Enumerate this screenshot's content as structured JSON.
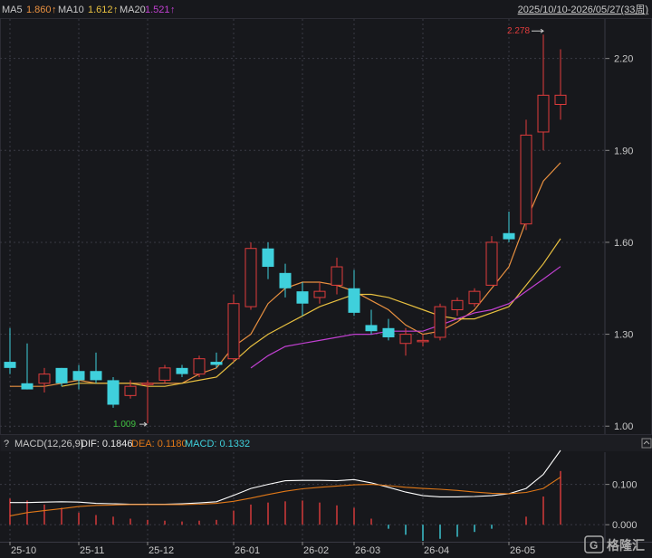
{
  "header": {
    "ma5_label": "MA5",
    "ma5_value": "1.860",
    "ma10_label": "MA10",
    "ma10_value": "1.612",
    "ma20_label": "MA20",
    "ma20_value": "1.521",
    "arrow": "↑",
    "range": "2025/10/10-2026/05/27(33周)"
  },
  "macd_header": {
    "question": "?",
    "title": "MACD(12,26,9)",
    "dif": "DIF: 0.1846",
    "dea": "DEA: 0.1180",
    "macd": "MACD: 0.1332"
  },
  "annotations": {
    "high": "2.278",
    "low": "1.009"
  },
  "watermark": "格隆汇",
  "colors": {
    "up": "#e03c3c",
    "down": "#3fd0dc",
    "ma5": "#e89040",
    "ma10": "#e8c040",
    "ma20": "#c040d0",
    "dif": "#ffffff",
    "dea": "#e07818",
    "grid": "#3a3a44",
    "axis_text": "#c8c8c8",
    "bg": "#17181c"
  },
  "chart_data": [
    {
      "type": "candlestick",
      "title": "",
      "ylim": [
        0.98,
        2.32
      ],
      "yticks": [
        "2.20",
        "1.90",
        "1.60",
        "1.30",
        "1.00"
      ],
      "x_ticks": [
        "25-10",
        "25-11",
        "25-12",
        "26-01",
        "26-02",
        "26-03",
        "26-04",
        "26-05"
      ],
      "x_tick_index": [
        0,
        4,
        8,
        13,
        17,
        20,
        24,
        29
      ],
      "candles": [
        {
          "o": 1.21,
          "c": 1.19,
          "h": 1.32,
          "l": 1.17
        },
        {
          "o": 1.14,
          "c": 1.12,
          "h": 1.27,
          "l": 1.12
        },
        {
          "o": 1.14,
          "c": 1.17,
          "h": 1.19,
          "l": 1.11
        },
        {
          "o": 1.19,
          "c": 1.14,
          "h": 1.19,
          "l": 1.13
        },
        {
          "o": 1.18,
          "c": 1.15,
          "h": 1.2,
          "l": 1.12
        },
        {
          "o": 1.18,
          "c": 1.15,
          "h": 1.24,
          "l": 1.14
        },
        {
          "o": 1.15,
          "c": 1.07,
          "h": 1.16,
          "l": 1.06
        },
        {
          "o": 1.1,
          "c": 1.13,
          "h": 1.15,
          "l": 1.09
        },
        {
          "o": 1.14,
          "c": 1.14,
          "h": 1.15,
          "l": 1.009
        },
        {
          "o": 1.15,
          "c": 1.19,
          "h": 1.2,
          "l": 1.14
        },
        {
          "o": 1.19,
          "c": 1.17,
          "h": 1.2,
          "l": 1.16
        },
        {
          "o": 1.17,
          "c": 1.22,
          "h": 1.23,
          "l": 1.16
        },
        {
          "o": 1.21,
          "c": 1.2,
          "h": 1.24,
          "l": 1.19
        },
        {
          "o": 1.22,
          "c": 1.4,
          "h": 1.43,
          "l": 1.21
        },
        {
          "o": 1.39,
          "c": 1.58,
          "h": 1.6,
          "l": 1.38
        },
        {
          "o": 1.58,
          "c": 1.52,
          "h": 1.6,
          "l": 1.48
        },
        {
          "o": 1.5,
          "c": 1.45,
          "h": 1.53,
          "l": 1.42
        },
        {
          "o": 1.44,
          "c": 1.4,
          "h": 1.47,
          "l": 1.36
        },
        {
          "o": 1.42,
          "c": 1.44,
          "h": 1.47,
          "l": 1.4
        },
        {
          "o": 1.46,
          "c": 1.52,
          "h": 1.55,
          "l": 1.43
        },
        {
          "o": 1.45,
          "c": 1.37,
          "h": 1.51,
          "l": 1.36
        },
        {
          "o": 1.33,
          "c": 1.31,
          "h": 1.38,
          "l": 1.3
        },
        {
          "o": 1.32,
          "c": 1.29,
          "h": 1.35,
          "l": 1.28
        },
        {
          "o": 1.27,
          "c": 1.3,
          "h": 1.32,
          "l": 1.23
        },
        {
          "o": 1.28,
          "c": 1.28,
          "h": 1.3,
          "l": 1.26
        },
        {
          "o": 1.29,
          "c": 1.39,
          "h": 1.4,
          "l": 1.28
        },
        {
          "o": 1.38,
          "c": 1.41,
          "h": 1.42,
          "l": 1.36
        },
        {
          "o": 1.4,
          "c": 1.44,
          "h": 1.45,
          "l": 1.39
        },
        {
          "o": 1.46,
          "c": 1.6,
          "h": 1.62,
          "l": 1.46
        },
        {
          "o": 1.63,
          "c": 1.61,
          "h": 1.7,
          "l": 1.6
        },
        {
          "o": 1.66,
          "c": 1.95,
          "h": 2.0,
          "l": 1.64
        },
        {
          "o": 1.96,
          "c": 2.08,
          "h": 2.278,
          "l": 1.9
        },
        {
          "o": 2.05,
          "c": 2.08,
          "h": 2.23,
          "l": 2.0
        }
      ],
      "series": [
        {
          "name": "MA5",
          "values": [
            1.13,
            1.13,
            1.13,
            1.14,
            1.15,
            1.14,
            1.14,
            1.14,
            1.14,
            1.14,
            1.14,
            1.17,
            1.19,
            1.26,
            1.3,
            1.4,
            1.45,
            1.47,
            1.47,
            1.46,
            1.44,
            1.41,
            1.38,
            1.33,
            1.3,
            1.31,
            1.34,
            1.38,
            1.45,
            1.52,
            1.67,
            1.8,
            1.86
          ]
        },
        {
          "name": "MA10",
          "values": [
            null,
            null,
            null,
            1.13,
            1.14,
            1.14,
            1.14,
            1.14,
            1.13,
            1.13,
            1.14,
            1.15,
            1.16,
            1.21,
            1.26,
            1.3,
            1.33,
            1.36,
            1.39,
            1.41,
            1.43,
            1.43,
            1.42,
            1.4,
            1.38,
            1.36,
            1.35,
            1.35,
            1.37,
            1.39,
            1.46,
            1.53,
            1.612
          ]
        },
        {
          "name": "MA20",
          "values": [
            null,
            null,
            null,
            null,
            null,
            null,
            null,
            null,
            null,
            null,
            null,
            null,
            null,
            null,
            1.19,
            1.23,
            1.26,
            1.27,
            1.28,
            1.29,
            1.3,
            1.3,
            1.31,
            1.31,
            1.31,
            1.33,
            1.35,
            1.37,
            1.38,
            1.4,
            1.44,
            1.48,
            1.521
          ]
        }
      ]
    },
    {
      "type": "macd",
      "ylim": [
        -0.04,
        0.18
      ],
      "yticks": [
        "0.100",
        "0.000"
      ],
      "series": [
        {
          "name": "DIF",
          "values": [
            0.055,
            0.055,
            0.056,
            0.057,
            0.056,
            0.053,
            0.052,
            0.051,
            0.051,
            0.051,
            0.052,
            0.054,
            0.057,
            0.073,
            0.09,
            0.1,
            0.109,
            0.11,
            0.11,
            0.109,
            0.112,
            0.104,
            0.093,
            0.081,
            0.072,
            0.069,
            0.069,
            0.07,
            0.072,
            0.077,
            0.09,
            0.125,
            0.1846
          ]
        },
        {
          "name": "DEA",
          "values": [
            0.022,
            0.03,
            0.035,
            0.04,
            0.045,
            0.048,
            0.049,
            0.05,
            0.05,
            0.05,
            0.05,
            0.051,
            0.053,
            0.058,
            0.066,
            0.075,
            0.083,
            0.089,
            0.093,
            0.096,
            0.099,
            0.1,
            0.097,
            0.093,
            0.09,
            0.088,
            0.085,
            0.081,
            0.078,
            0.077,
            0.08,
            0.09,
            0.118
          ]
        },
        {
          "name": "MACD",
          "values": [
            0.065,
            0.06,
            0.05,
            0.042,
            0.03,
            0.024,
            0.02,
            0.015,
            0.012,
            0.01,
            0.008,
            0.01,
            0.012,
            0.035,
            0.05,
            0.055,
            0.058,
            0.06,
            0.055,
            0.048,
            0.042,
            0.015,
            -0.01,
            -0.025,
            -0.04,
            -0.035,
            -0.03,
            -0.018,
            -0.01,
            0.0,
            0.02,
            0.07,
            0.1332
          ]
        }
      ]
    }
  ]
}
